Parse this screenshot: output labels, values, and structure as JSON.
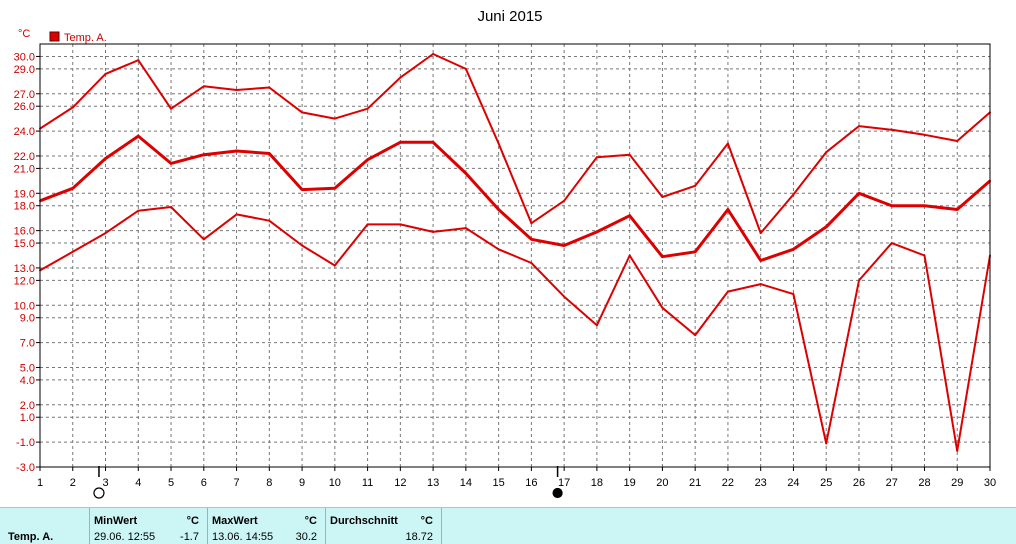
{
  "chart_data": {
    "type": "line",
    "title": "Juni 2015",
    "ylabel": "°C",
    "legend": {
      "label": "Temp. A.",
      "placement": "top-left",
      "color": "#dd0000"
    },
    "x": [
      1,
      2,
      3,
      4,
      5,
      6,
      7,
      8,
      9,
      10,
      11,
      12,
      13,
      14,
      15,
      16,
      17,
      18,
      19,
      20,
      21,
      22,
      23,
      24,
      25,
      26,
      27,
      28,
      29,
      30
    ],
    "xticks": [
      "1",
      "2",
      "3",
      "4",
      "5",
      "6",
      "7",
      "8",
      "9",
      "10",
      "11",
      "12",
      "13",
      "14",
      "15",
      "16",
      "17",
      "18",
      "19",
      "20",
      "21",
      "22",
      "23",
      "24",
      "25",
      "26",
      "27",
      "28",
      "29",
      "30"
    ],
    "yticks": [
      "30.0",
      "29.0",
      "27.0",
      "26.0",
      "24.0",
      "22.0",
      "21.0",
      "19.0",
      "18.0",
      "16.0",
      "15.0",
      "13.0",
      "12.0",
      "10.0",
      "9.0",
      "7.0",
      "5.0",
      "4.0",
      "2.0",
      "1.0",
      "-1.0",
      "-3.0"
    ],
    "ylim": [
      -3,
      31
    ],
    "grid": true,
    "series": [
      {
        "role": "max",
        "values": [
          24.2,
          25.9,
          28.6,
          29.7,
          25.8,
          27.6,
          27.3,
          27.5,
          25.5,
          25.0,
          25.8,
          28.3,
          30.2,
          29.0,
          23.0,
          16.6,
          18.4,
          21.9,
          22.1,
          18.7,
          19.6,
          23.0,
          15.8,
          18.9,
          22.3,
          24.4,
          24.1,
          23.7,
          23.2,
          25.5
        ]
      },
      {
        "role": "mean",
        "values": [
          18.4,
          19.4,
          21.8,
          23.6,
          21.4,
          22.1,
          22.4,
          22.2,
          19.3,
          19.4,
          21.7,
          23.1,
          23.1,
          20.6,
          17.7,
          15.3,
          14.8,
          15.9,
          17.2,
          13.9,
          14.3,
          17.7,
          13.6,
          14.5,
          16.3,
          19.0,
          18.0,
          18.0,
          17.7,
          20.0
        ]
      },
      {
        "role": "min",
        "values": [
          12.8,
          14.3,
          15.8,
          17.6,
          17.9,
          15.3,
          17.3,
          16.8,
          14.8,
          13.2,
          16.5,
          16.5,
          15.9,
          16.2,
          14.5,
          13.4,
          10.7,
          8.4,
          14.0,
          9.8,
          7.6,
          11.1,
          11.7,
          10.9,
          -1.1,
          12.0,
          15.0,
          14.0,
          -1.7,
          14.0
        ]
      }
    ],
    "markers": [
      {
        "x": 3,
        "symbol": "hollow-circle"
      },
      {
        "x": 17,
        "symbol": "filled-circle"
      }
    ],
    "line_color": "#dd0000"
  },
  "stats": {
    "series_label": "Temp. A.",
    "min": {
      "header": "MinWert",
      "unit": "°C",
      "datetime": "29.06.  12:55",
      "value": "-1.7"
    },
    "max": {
      "header": "MaxWert",
      "unit": "°C",
      "datetime": "13.06.  14:55",
      "value": "30.2"
    },
    "avg": {
      "header": "Durchschnitt",
      "unit": "°C",
      "value": "18.72"
    }
  }
}
